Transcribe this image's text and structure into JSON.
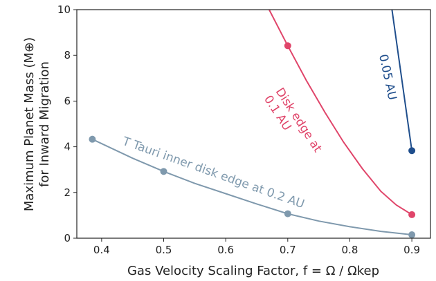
{
  "chart_data": {
    "type": "line",
    "xlabel": "Gas Velocity Scaling Factor, f = Ω / Ωkep",
    "ylabel_line1": "Maximum Planet Mass (M⊕)",
    "ylabel_line2": "for Inward Migration",
    "xlim": [
      0.36,
      0.93
    ],
    "ylim": [
      0,
      10
    ],
    "xticks": [
      0.4,
      0.5,
      0.6,
      0.7,
      0.8,
      0.9
    ],
    "xtick_labels": [
      "0.4",
      "0.5",
      "0.6",
      "0.7",
      "0.8",
      "0.9"
    ],
    "yticks": [
      0,
      2,
      4,
      6,
      8,
      10
    ],
    "ytick_labels": [
      "0",
      "2",
      "4",
      "6",
      "8",
      "10"
    ],
    "grid": false,
    "legend": "none",
    "series": [
      {
        "color": "#7f99ad",
        "curve_x": [
          0.385,
          0.45,
          0.5,
          0.55,
          0.6,
          0.65,
          0.7,
          0.75,
          0.8,
          0.85,
          0.9
        ],
        "curve_y": [
          4.33,
          3.5,
          2.92,
          2.4,
          1.95,
          1.5,
          1.07,
          0.75,
          0.5,
          0.3,
          0.15
        ],
        "points_x": [
          0.385,
          0.5,
          0.7,
          0.9
        ],
        "points_y": [
          4.33,
          2.92,
          1.07,
          0.15
        ],
        "label": "T Tauri inner disk edge at 0.2 AU"
      },
      {
        "color": "#e0456a",
        "curve_x": [
          0.67,
          0.7,
          0.73,
          0.76,
          0.79,
          0.82,
          0.85,
          0.875,
          0.9
        ],
        "curve_y": [
          10.0,
          8.42,
          6.9,
          5.5,
          4.2,
          3.05,
          2.05,
          1.45,
          1.03
        ],
        "points_x": [
          0.7,
          0.9
        ],
        "points_y": [
          8.42,
          1.03
        ],
        "label_line1": "Disk edge at",
        "label_line2": "0.1 AU"
      },
      {
        "color": "#1f4e8c",
        "curve_x": [
          0.868,
          0.9
        ],
        "curve_y": [
          10.0,
          3.83
        ],
        "points_x": [
          0.9
        ],
        "points_y": [
          3.83
        ],
        "label": "0.05 AU"
      }
    ]
  }
}
